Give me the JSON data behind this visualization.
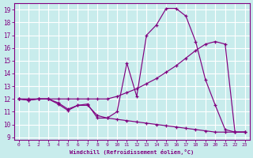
{
  "background_color": "#c8ecec",
  "grid_color": "#ffffff",
  "line_color": "#800080",
  "xlim": [
    -0.5,
    23.5
  ],
  "ylim": [
    8.8,
    19.5
  ],
  "xticks": [
    0,
    1,
    2,
    3,
    4,
    5,
    6,
    7,
    8,
    9,
    10,
    11,
    12,
    13,
    14,
    15,
    16,
    17,
    18,
    19,
    20,
    21,
    22,
    23
  ],
  "yticks": [
    9,
    10,
    11,
    12,
    13,
    14,
    15,
    16,
    17,
    18,
    19
  ],
  "xlabel": "Windchill (Refroidissement éolien,°C)",
  "series1_x": [
    0,
    1,
    2,
    3,
    4,
    5,
    6,
    7,
    8,
    9,
    10,
    11,
    12,
    13,
    14,
    15,
    16,
    17,
    18,
    19,
    20,
    21,
    22,
    23
  ],
  "series1_y": [
    12.0,
    11.9,
    12.0,
    12.0,
    11.6,
    11.1,
    11.5,
    11.6,
    10.5,
    10.5,
    11.0,
    14.8,
    12.2,
    17.0,
    17.8,
    19.1,
    19.1,
    18.5,
    16.5,
    13.5,
    11.5,
    9.6,
    9.4,
    9.4
  ],
  "series2_x": [
    0,
    1,
    2,
    3,
    4,
    5,
    6,
    7,
    8,
    9,
    10,
    11,
    12,
    13,
    14,
    15,
    16,
    17,
    18,
    19,
    20,
    21,
    22,
    23
  ],
  "series2_y": [
    12.0,
    12.0,
    12.0,
    12.0,
    12.0,
    12.0,
    12.0,
    12.0,
    12.0,
    12.0,
    12.2,
    12.5,
    12.8,
    13.2,
    13.6,
    14.1,
    14.6,
    15.2,
    15.8,
    16.3,
    16.5,
    16.3,
    9.4,
    9.4
  ],
  "series3_x": [
    0,
    1,
    2,
    3,
    4,
    5,
    6,
    7,
    8,
    9,
    10,
    11,
    12,
    13,
    14,
    15,
    16,
    17,
    18,
    19,
    20,
    21,
    22,
    23
  ],
  "series3_y": [
    12.0,
    11.9,
    12.0,
    12.0,
    11.7,
    11.2,
    11.5,
    11.5,
    10.7,
    10.5,
    10.4,
    10.3,
    10.2,
    10.1,
    10.0,
    9.9,
    9.8,
    9.7,
    9.6,
    9.5,
    9.4,
    9.4,
    9.4,
    9.4
  ]
}
